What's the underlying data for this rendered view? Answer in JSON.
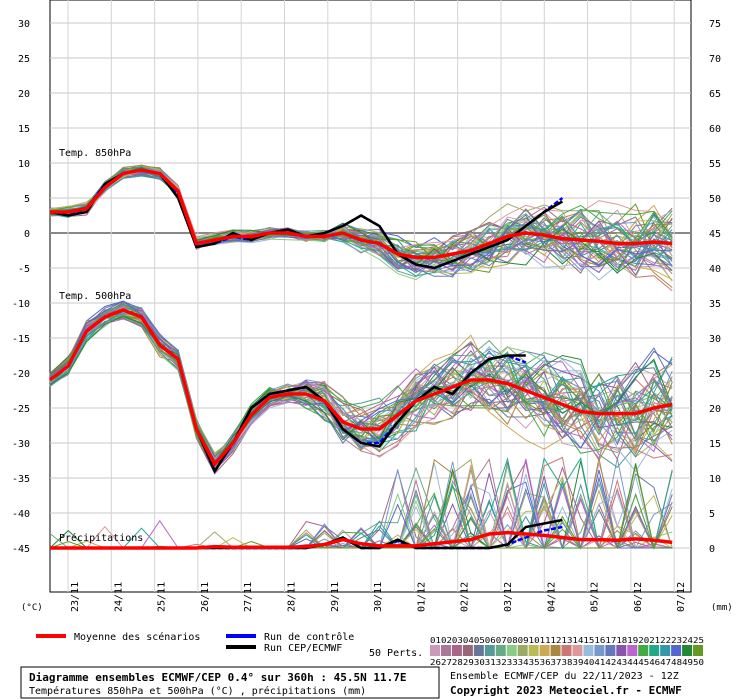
{
  "chart_data": {
    "type": "line",
    "x_ticks": [
      "23/11",
      "24/11",
      "25/11",
      "26/11",
      "27/11",
      "28/11",
      "29/11",
      "30/11",
      "01/12",
      "02/12",
      "03/12",
      "04/12",
      "05/12",
      "06/12",
      "07/12"
    ],
    "left_axis": {
      "unit": "(°C)",
      "ylim": [
        -51,
        32
      ],
      "ticks": [
        30,
        25,
        20,
        15,
        10,
        5,
        0,
        -5,
        -10,
        -15,
        -20,
        -25,
        -30,
        -35,
        -40,
        -45
      ]
    },
    "right_axis": {
      "unit": "(mm)",
      "ylim": [
        -6,
        77
      ],
      "ticks": [
        75,
        70,
        65,
        60,
        55,
        50,
        45,
        40,
        35,
        30,
        25,
        20,
        15,
        10,
        5,
        0
      ]
    },
    "panel_labels": {
      "t850": "Temp. 850hPa",
      "t500": "Temp. 500hPa",
      "precip": "Précipitations"
    },
    "series": [
      {
        "name": "Moyenne des scénarios",
        "color": "#ff0000",
        "panel": "t850",
        "values": [
          3,
          3,
          3.5,
          6.5,
          8.5,
          9,
          8.5,
          6,
          -1.5,
          -1,
          -0.5,
          -0.5,
          0,
          0,
          -0.5,
          -0.5,
          0,
          -1,
          -1.5,
          -3,
          -3.5,
          -3.5,
          -3,
          -2.5,
          -1.5,
          -0.5,
          0,
          -0.3,
          -0.8,
          -1,
          -1.2,
          -1.5,
          -1.5,
          -1.3,
          -1.5
        ]
      },
      {
        "name": "Run de contrôle",
        "color": "#0000ff",
        "panel": "t850",
        "values": [
          3,
          2.5,
          3.5,
          7,
          8.5,
          9,
          8.5,
          5.5,
          -2,
          -1.5,
          -0.5,
          -1,
          0,
          0.5,
          -0.5,
          0,
          1,
          2.5,
          1,
          -3,
          -4.5,
          -5,
          -4,
          -3,
          -2,
          -1,
          1,
          3,
          5
        ]
      },
      {
        "name": "Run CEP/ECMWF",
        "color": "#000000",
        "panel": "t850",
        "values": [
          3,
          2.5,
          3,
          7,
          8.5,
          9,
          8.5,
          5,
          -2,
          -1.5,
          0,
          -1,
          0,
          0.5,
          -0.5,
          0,
          1,
          2.5,
          1,
          -3,
          -4.5,
          -5,
          -4,
          -3,
          -2,
          -1,
          1,
          3,
          4.5
        ]
      },
      {
        "name": "Moyenne des scénarios",
        "color": "#ff0000",
        "panel": "t500",
        "values": [
          -21,
          -19,
          -14,
          -12,
          -11,
          -12,
          -16,
          -18,
          -28,
          -33,
          -30,
          -26,
          -23.5,
          -23,
          -23,
          -24,
          -27,
          -28,
          -28,
          -26,
          -24,
          -23,
          -22,
          -21,
          -21,
          -21.5,
          -22.5,
          -23.5,
          -24.5,
          -25.5,
          -25.8,
          -25.8,
          -25.8,
          -25,
          -24.5
        ]
      },
      {
        "name": "Run de contrôle",
        "color": "#0000ff",
        "panel": "t500",
        "values": [
          -21,
          -19,
          -14,
          -12,
          -11,
          -12,
          -16,
          -18,
          -28,
          -34,
          -30,
          -25,
          -23,
          -22.5,
          -22,
          -24,
          -28,
          -30,
          -30,
          -27,
          -24,
          -22,
          -23,
          -20,
          -18,
          -17.5,
          -18.5
        ]
      },
      {
        "name": "Run CEP/ECMWF",
        "color": "#000000",
        "panel": "t500",
        "values": [
          -21,
          -19,
          -14,
          -12,
          -11,
          -12,
          -16,
          -18,
          -28,
          -34,
          -30,
          -25,
          -23,
          -22.5,
          -22,
          -24,
          -28,
          -30,
          -30.5,
          -27,
          -24,
          -22,
          -23,
          -20,
          -18,
          -17.5,
          -17.5
        ]
      },
      {
        "name": "Moyenne des scénarios",
        "color": "#ff0000",
        "panel": "precip",
        "values": [
          0,
          0,
          0,
          0,
          0,
          0,
          0,
          0,
          0,
          0.2,
          0.1,
          0.1,
          0.1,
          0.1,
          0.2,
          0.5,
          1.2,
          0.6,
          0.3,
          0.3,
          0.3,
          0.6,
          0.9,
          1.2,
          2,
          2.2,
          2,
          1.8,
          1.5,
          1.2,
          1.2,
          1.1,
          1.3,
          1.1,
          0.8
        ]
      },
      {
        "name": "Run de contrôle",
        "color": "#0000ff",
        "panel": "precip",
        "values": [
          0,
          0,
          0,
          0,
          0,
          0,
          0,
          0,
          0,
          0,
          0,
          0,
          0,
          0,
          0,
          0.5,
          1.5,
          0,
          0,
          1,
          0,
          0,
          0,
          0,
          0,
          0.5,
          1.5,
          2.5,
          3
        ]
      },
      {
        "name": "Run CEP/ECMWF",
        "color": "#000000",
        "panel": "precip",
        "values": [
          0,
          0,
          0,
          0,
          0,
          0,
          0,
          0,
          0,
          0,
          0,
          0,
          0,
          0,
          0,
          0.5,
          1.5,
          0,
          0,
          1.2,
          0,
          0,
          0,
          0,
          0,
          0.5,
          3,
          3.5,
          4
        ]
      }
    ],
    "ensemble_members": 50,
    "ensemble_palette": [
      "#cc99bb",
      "#aa7799",
      "#aa6688",
      "#996677",
      "#667799",
      "#559999",
      "#66aa88",
      "#88cc88",
      "#99aa66",
      "#bbbb55",
      "#ccaa55",
      "#aa8844",
      "#cc7777",
      "#dd9999",
      "#99bbdd",
      "#7799cc",
      "#6677bb",
      "#8855aa",
      "#bb66cc",
      "#44aa44",
      "#22aa88",
      "#3399aa",
      "#5566cc",
      "#228833",
      "#669922"
    ],
    "legend": {
      "mean": "Moyenne des scénarios",
      "control": "Run de contrôle",
      "ecmwf": "Run CEP/ECMWF",
      "perts": "50 Perts.",
      "perts_row1": "01020304050607080910111213141516171819202122232425",
      "perts_row2": "26272829303132333435363738394041424344454647484950"
    },
    "title": "Diagramme ensembles ECMWF/CEP 0.4° sur 360h : 45.5N 11.7E",
    "subtitle": "Températures 850hPa et 500hPa (°C) , précipitations (mm)",
    "run_info": "Ensemble ECMWF/CEP du 22/11/2023 - 12Z",
    "copyright": "Copyright 2023 Meteociel.fr - ECMWF"
  }
}
